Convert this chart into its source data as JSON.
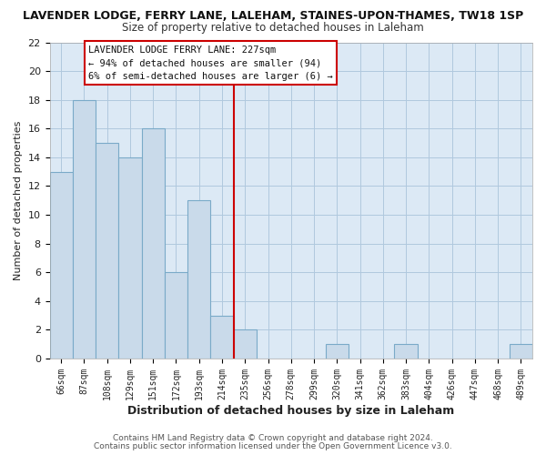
{
  "title": "LAVENDER LODGE, FERRY LANE, LALEHAM, STAINES-UPON-THAMES, TW18 1SP",
  "subtitle": "Size of property relative to detached houses in Laleham",
  "xlabel": "Distribution of detached houses by size in Laleham",
  "ylabel": "Number of detached properties",
  "bar_labels": [
    "66sqm",
    "87sqm",
    "108sqm",
    "129sqm",
    "151sqm",
    "172sqm",
    "193sqm",
    "214sqm",
    "235sqm",
    "256sqm",
    "278sqm",
    "299sqm",
    "320sqm",
    "341sqm",
    "362sqm",
    "383sqm",
    "404sqm",
    "426sqm",
    "447sqm",
    "468sqm",
    "489sqm"
  ],
  "bar_values": [
    13,
    18,
    15,
    14,
    16,
    6,
    11,
    3,
    2,
    0,
    0,
    0,
    1,
    0,
    0,
    1,
    0,
    0,
    0,
    0,
    1
  ],
  "bar_color": "#c9daea",
  "bar_edge_color": "#7aaac8",
  "vline_x": 7.5,
  "vline_color": "#cc0000",
  "ylim": [
    0,
    22
  ],
  "yticks": [
    0,
    2,
    4,
    6,
    8,
    10,
    12,
    14,
    16,
    18,
    20,
    22
  ],
  "annotation_title": "LAVENDER LODGE FERRY LANE: 227sqm",
  "annotation_line1": "← 94% of detached houses are smaller (94)",
  "annotation_line2": "6% of semi-detached houses are larger (6) →",
  "footer1": "Contains HM Land Registry data © Crown copyright and database right 2024.",
  "footer2": "Contains public sector information licensed under the Open Government Licence v3.0.",
  "bg_color": "#ffffff",
  "plot_bg_color": "#dce9f5",
  "grid_color": "#b0c8de"
}
